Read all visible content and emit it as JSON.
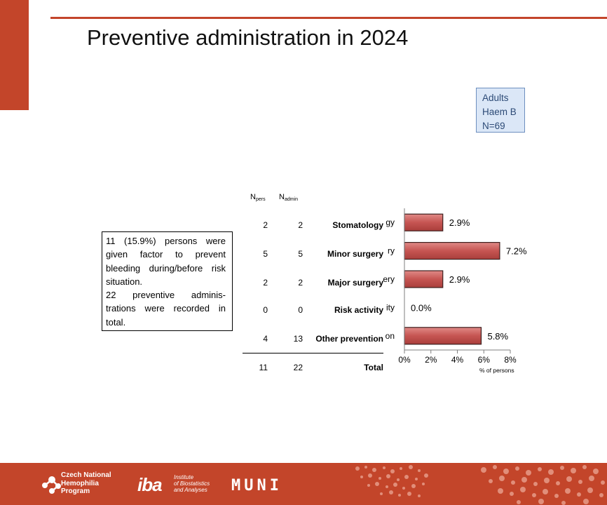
{
  "title": "Preventive administration in 2024",
  "group_box": {
    "line1": "Adults",
    "line2": "Haem B",
    "line3": "N=69"
  },
  "note": {
    "line1": "11 (15.9%) persons were given factor to prevent bleeding during/before risk situation.",
    "line2": "22 preventive adminis-trations were recorded in total."
  },
  "table": {
    "col_pers_main": "N",
    "col_pers_sub": "pers",
    "col_admin_main": "N",
    "col_admin_sub": "admin",
    "rows": [
      {
        "label": "Stomatology",
        "n_pers": "2",
        "n_admin": "2"
      },
      {
        "label": "Minor surgery",
        "n_pers": "5",
        "n_admin": "5"
      },
      {
        "label": "Major surgery",
        "n_pers": "2",
        "n_admin": "2"
      },
      {
        "label": "Risk activity",
        "n_pers": "0",
        "n_admin": "0"
      },
      {
        "label": "Other prevention",
        "n_pers": "4",
        "n_admin": "13"
      }
    ],
    "total": {
      "label": "Total",
      "n_pers": "11",
      "n_admin": "22"
    }
  },
  "chart_data": {
    "type": "bar",
    "orientation": "horizontal",
    "categories": [
      "Stomatology",
      "Minor surgery",
      "Major surgery",
      "Risk activity",
      "Other prevention"
    ],
    "values": [
      2.9,
      7.2,
      2.9,
      0.0,
      5.8
    ],
    "data_labels": [
      "2.9%",
      "7.2%",
      "2.9%",
      "0.0%",
      "5.8%"
    ],
    "clipped_category_labels": [
      "gy",
      "ry",
      "ery",
      "ity",
      "on"
    ],
    "xlim": [
      0,
      8
    ],
    "xticks": [
      "0%",
      "2%",
      "4%",
      "6%",
      "8%"
    ],
    "xlabel": "% of persons",
    "bar_color": "#c0504d",
    "grid": false
  },
  "footer": {
    "cnhp_line1": "Czech National",
    "cnhp_line2": "Hemophilia",
    "cnhp_line3": "Program",
    "iba_mark": "iba",
    "iba_line1": "Institute",
    "iba_line2": "of Biostatistics",
    "iba_line3": "and Analyses",
    "muni": "MUNI"
  }
}
